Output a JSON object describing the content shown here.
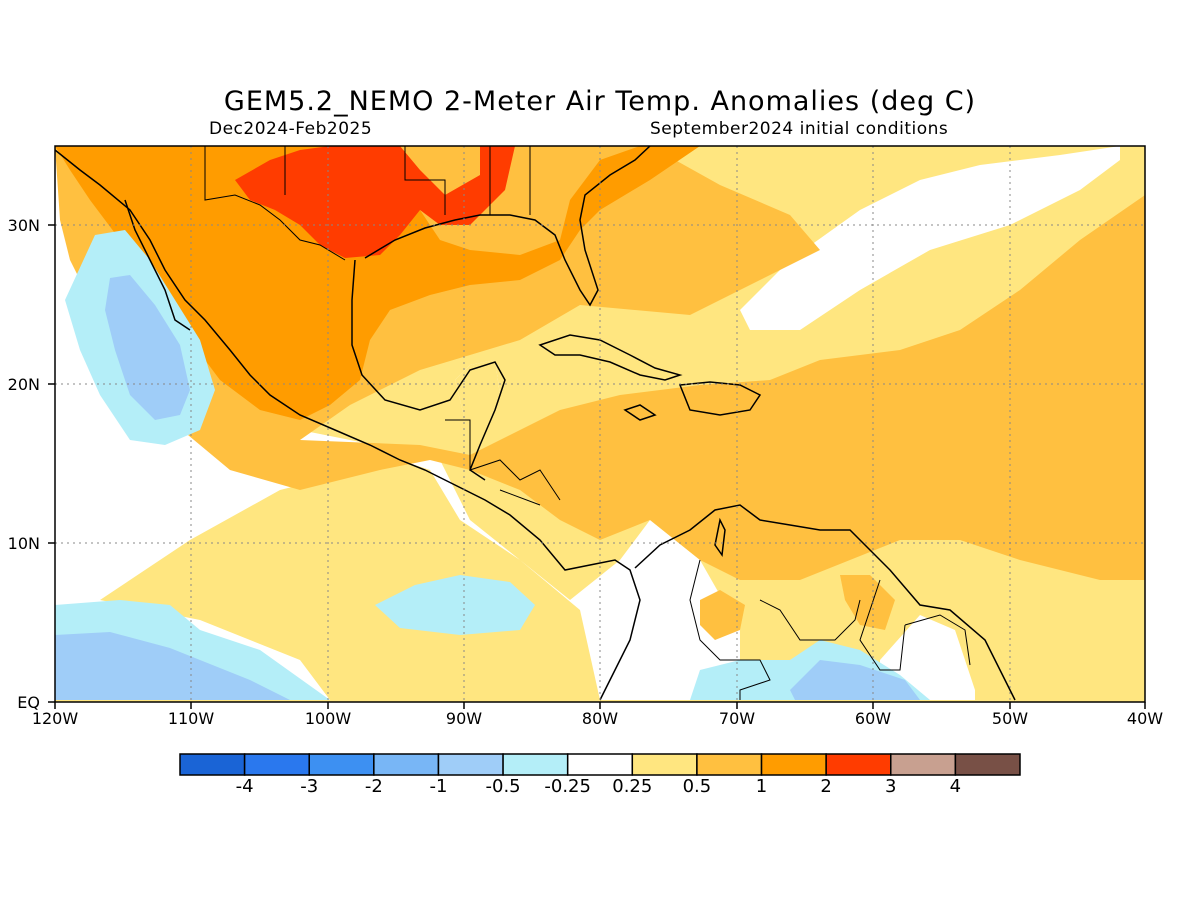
{
  "title": "GEM5.2_NEMO 2-Meter Air Temp. Anomalies (deg C)",
  "period": "Dec2024-Feb2025",
  "init": "September2024 initial conditions",
  "lat_labels": [
    "30N",
    "20N",
    "10N",
    "EQ"
  ],
  "lon_labels": [
    "120W",
    "110W",
    "100W",
    "90W",
    "80W",
    "70W",
    "60W",
    "50W",
    "40W"
  ],
  "colorbar": {
    "labels": [
      "-4",
      "-3",
      "-2",
      "-1",
      "-0.5",
      "-0.25",
      "0.25",
      "0.5",
      "1",
      "2",
      "3",
      "4"
    ],
    "colors": [
      "#1a64d6",
      "#2a78ee",
      "#3d90f2",
      "#78b6f6",
      "#9fcdf8",
      "#b4eef8",
      "#ffffff",
      "#ffe680",
      "#ffc040",
      "#ff9c00",
      "#ff3c00",
      "#c8a090",
      "#785046"
    ]
  }
}
